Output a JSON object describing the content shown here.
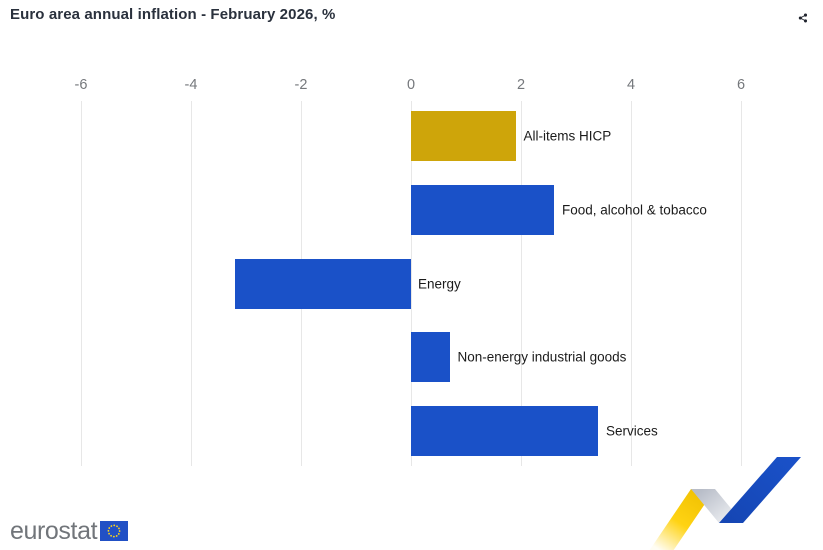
{
  "header": {
    "share_icon": "share-icon"
  },
  "chart_data": {
    "type": "bar",
    "orientation": "horizontal",
    "title": "Euro area annual inflation - February 2026, %",
    "categories": [
      "All-items HICP",
      "Food, alcohol & tobacco",
      "Energy",
      "Non-energy industrial goods",
      "Services"
    ],
    "values": [
      1.9,
      2.6,
      -3.2,
      0.7,
      3.4
    ],
    "bar_colors": [
      "#CEA50A",
      "#1A51C8",
      "#1A51C8",
      "#1A51C8",
      "#1A51C8"
    ],
    "xticks": [
      -6,
      -4,
      -2,
      0,
      2,
      4,
      6
    ],
    "xlim": [
      -7.5,
      7.5
    ],
    "xlabel": "",
    "ylabel": "",
    "grid": true,
    "legend": "none",
    "value_labels": false
  },
  "colors": {
    "accent_gold": "#CEA50A",
    "accent_blue": "#1A51C8",
    "grid": "#e7e7e7",
    "tick_label": "#75787c",
    "title": "#2a313d",
    "bar_label": "#1b1b1b",
    "share_icon": "#20242e",
    "flag_blue": "#2150C5",
    "star_yellow": "#FFD617",
    "ribbon_yellow": "#FFD313",
    "ribbon_gray": "#C7CBD3",
    "ribbon_blue": "#1A51C8",
    "logo_gray": "#71757a"
  },
  "footer": {
    "logo_text": "eurostat",
    "flag_icon": "eu-flag-icon",
    "ribbon_graphic": "eurostat-ribbon-graphic"
  }
}
